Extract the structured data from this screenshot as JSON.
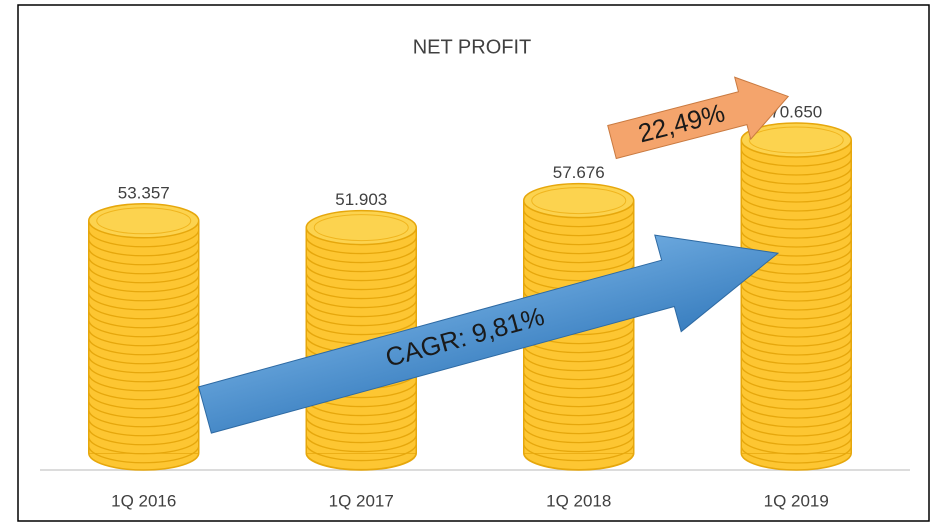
{
  "chart_data": {
    "type": "bar",
    "title": "NET PROFIT",
    "categories": [
      "1Q 2016",
      "1Q 2017",
      "1Q 2018",
      "1Q 2019"
    ],
    "values": [
      53357,
      51903,
      57676,
      70650
    ],
    "value_labels": [
      "53.357",
      "51.903",
      "57.676",
      "70.650"
    ],
    "color": "#fdc632",
    "annotations": [
      "CAGR: 9,81%",
      "22,49%"
    ]
  }
}
